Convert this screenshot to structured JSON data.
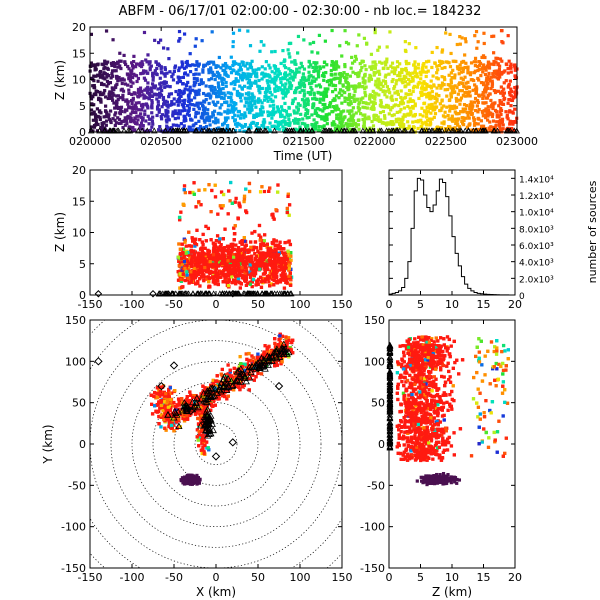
{
  "title": "ABFM - 06/17/01 02:00:00 - 02:30:00 - nb loc.= 184232",
  "colors": {
    "axes": "#000000",
    "background": "#ffffff",
    "rainbow": [
      "#2a0a3a",
      "#5a1a8a",
      "#1a2fd8",
      "#00a8f0",
      "#00e0c0",
      "#20e030",
      "#b0f020",
      "#f8e000",
      "#ff8a00",
      "#ff2a10"
    ],
    "cluster": "#4a1050",
    "dominant": "#ff1a10",
    "range_rings": "#000000"
  },
  "chart_data": [
    {
      "type": "scatter",
      "panel": "time-height",
      "xlabel": "Time (UT)",
      "ylabel": "Z (km)",
      "xticks": [
        "020000",
        "020500",
        "021000",
        "021500",
        "022000",
        "022500",
        "023000"
      ],
      "yticks": [
        "0",
        "5",
        "10",
        "15",
        "20"
      ],
      "xlim": [
        "02:00:00",
        "02:30:00"
      ],
      "ylim": [
        0,
        20
      ],
      "color_by": "time",
      "typical_altitude_km": [
        0,
        14
      ],
      "max_altitude_km": 20
    },
    {
      "type": "scatter",
      "panel": "x-height",
      "xlabel": "",
      "ylabel": "Z (km)",
      "xticks": [
        "-150",
        "-100",
        "-50",
        "0",
        "50",
        "100",
        "150"
      ],
      "yticks": [
        "0",
        "5",
        "10",
        "15",
        "20"
      ],
      "xlim": [
        -150,
        150
      ],
      "ylim": [
        0,
        20
      ]
    },
    {
      "type": "line",
      "panel": "height-histogram",
      "xlabel": "",
      "ylabel": "number of sources",
      "xticks": [
        "0",
        "5",
        "10",
        "15",
        "20"
      ],
      "yticks": [
        "0",
        "2.0x10³",
        "4.0x10³",
        "6.0x10³",
        "8.0x10³",
        "1.0x10⁴",
        "1.2x10⁴",
        "1.4x10⁴"
      ],
      "xlim": [
        0,
        20
      ],
      "ylim": [
        0,
        15000
      ],
      "x": [
        0,
        0.5,
        1,
        1.5,
        2,
        2.5,
        3,
        3.5,
        4,
        4.5,
        5,
        5.5,
        6,
        6.5,
        7,
        7.5,
        8,
        8.5,
        9,
        9.5,
        10,
        10.5,
        11,
        11.5,
        12,
        12.5,
        13,
        13.5,
        14,
        14.5,
        15,
        15.5,
        16,
        16.5,
        17,
        17.5,
        18,
        18.5,
        19,
        19.5
      ],
      "values": [
        100,
        200,
        300,
        500,
        900,
        2000,
        4000,
        8000,
        12500,
        14000,
        13800,
        12000,
        10500,
        10000,
        10800,
        12500,
        13900,
        13500,
        11800,
        9500,
        7000,
        5000,
        3500,
        2200,
        1300,
        800,
        500,
        300,
        200,
        150,
        100,
        80,
        60,
        40,
        30,
        20,
        15,
        10,
        5,
        5
      ]
    },
    {
      "type": "scatter",
      "panel": "plan-view",
      "xlabel": "X (km)",
      "ylabel": "Y (km)",
      "xticks": [
        "-150",
        "-100",
        "-50",
        "0",
        "50",
        "100",
        "150"
      ],
      "yticks": [
        "-150",
        "-100",
        "-50",
        "0",
        "50",
        "100",
        "150"
      ],
      "xlim": [
        -150,
        150
      ],
      "ylim": [
        -150,
        150
      ],
      "range_rings_km": [
        25,
        50,
        75,
        100,
        125,
        150,
        175,
        200
      ],
      "station_markers": "diamond"
    },
    {
      "type": "scatter",
      "panel": "height-y",
      "xlabel": "Z (km)",
      "ylabel": "",
      "xticks": [
        "0",
        "5",
        "10",
        "15",
        "20"
      ],
      "yticks": [
        "-150",
        "-100",
        "-50",
        "0",
        "50",
        "100",
        "150"
      ],
      "xlim": [
        0,
        20
      ],
      "ylim": [
        -150,
        150
      ]
    }
  ]
}
